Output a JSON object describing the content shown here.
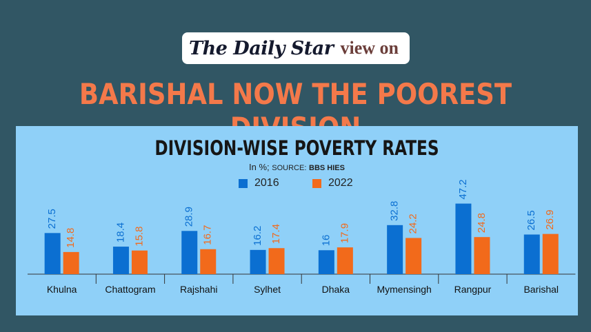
{
  "header": {
    "logo_text": "The Daily Star",
    "view_on": "view on",
    "headline": "BARISHAL NOW THE POOREST DIVISION"
  },
  "chart_data": {
    "type": "bar",
    "title": "DIVISION-WISE POVERTY RATES",
    "subtitle_unit": "In %;",
    "subtitle_source_label": "SOURCE:",
    "subtitle_source": "BBS HIES",
    "categories": [
      "Khulna",
      "Chattogram",
      "Rajshahi",
      "Sylhet",
      "Dhaka",
      "Mymensingh",
      "Rangpur",
      "Barishal"
    ],
    "series": [
      {
        "name": "2016",
        "color": "#0b6fd1",
        "values": [
          27.5,
          18.4,
          28.9,
          16.2,
          16,
          32.8,
          47.2,
          26.5
        ]
      },
      {
        "name": "2022",
        "color": "#f26a1b",
        "values": [
          14.8,
          15.8,
          16.7,
          17.4,
          17.9,
          24.2,
          24.8,
          26.9
        ]
      }
    ],
    "ylim": [
      0,
      50
    ],
    "legend": "top-center",
    "grid": false
  }
}
